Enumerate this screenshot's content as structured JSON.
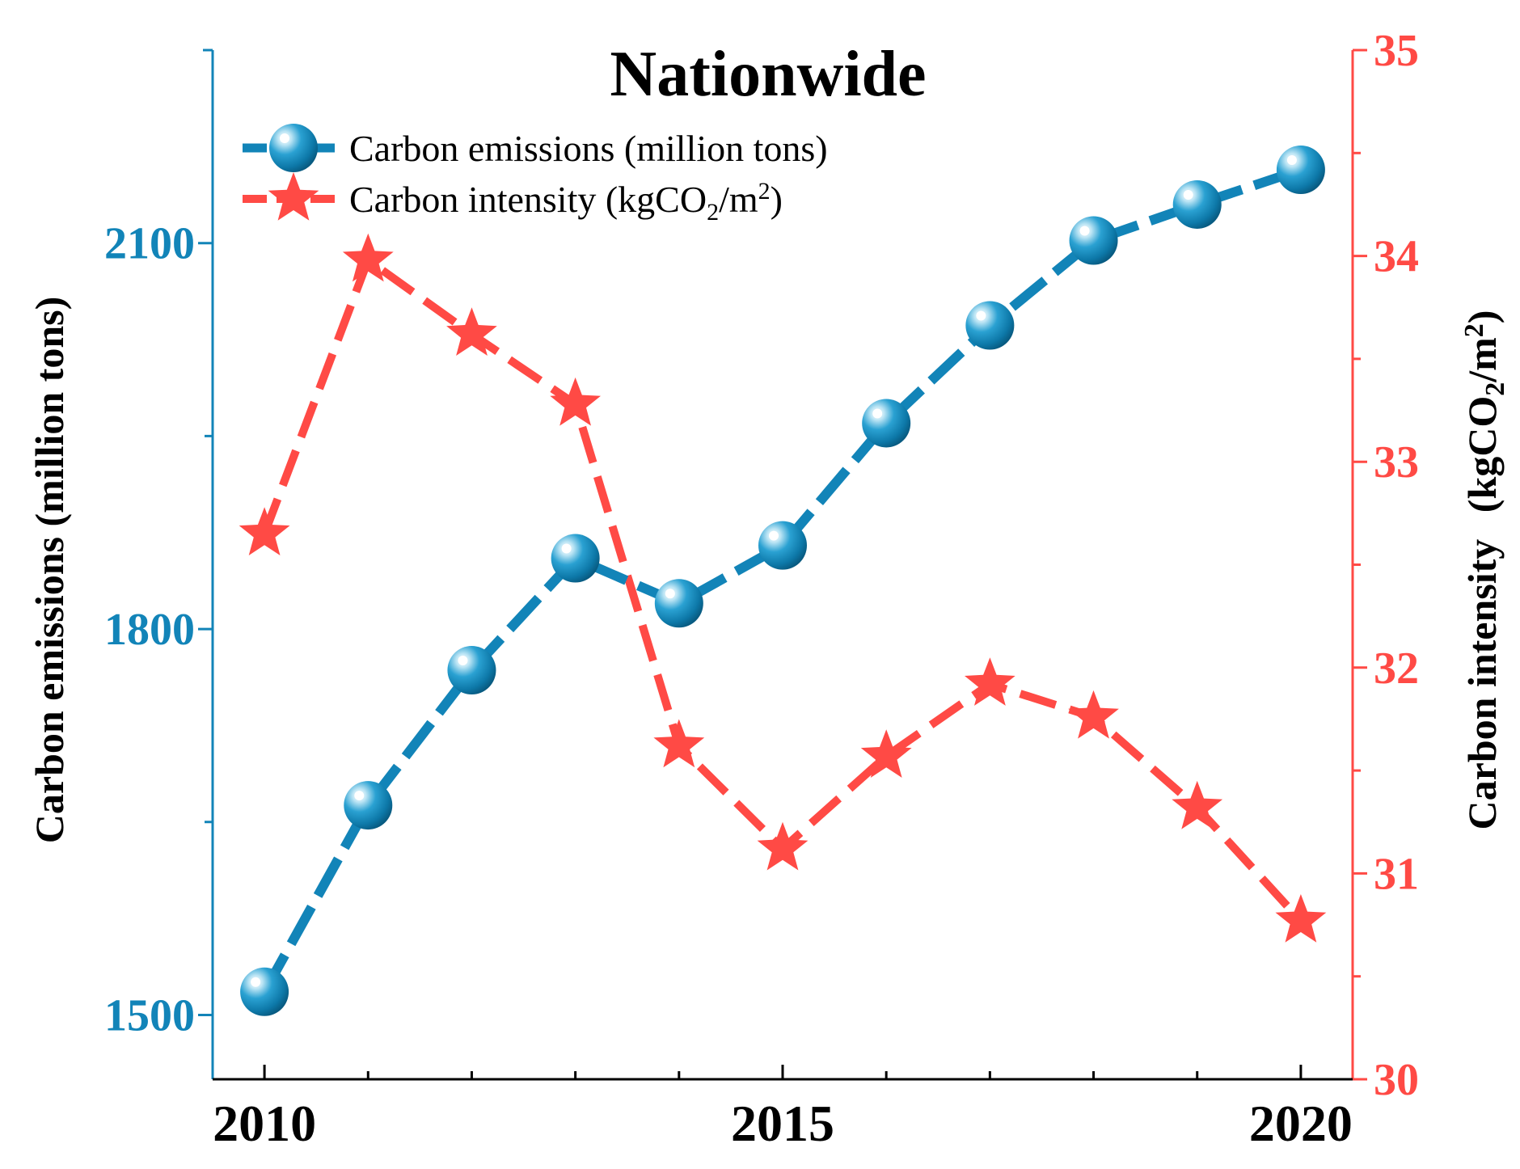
{
  "chart_data": {
    "type": "line",
    "title": "Nationwide",
    "x": [
      2010,
      2011,
      2012,
      2013,
      2014,
      2015,
      2016,
      2017,
      2018,
      2019,
      2020
    ],
    "x_ticks": [
      "2010",
      "2015",
      "2020"
    ],
    "xlim": [
      2009.5,
      2020.5
    ],
    "series": [
      {
        "name": "Carbon emissions (million tons)",
        "axis": "left",
        "color": "#1284b8",
        "marker": "sphere",
        "values": [
          1518,
          1663,
          1768,
          1855,
          1820,
          1865,
          1960,
          2036,
          2102,
          2130,
          2157
        ]
      },
      {
        "name": "Carbon intensity",
        "name_unit_parts": [
          "(kgCO",
          "2",
          "/m",
          "2",
          ")"
        ],
        "axis": "right",
        "color": "#ff4a45",
        "marker": "star",
        "values": [
          32.65,
          33.98,
          33.62,
          33.28,
          31.62,
          31.12,
          31.57,
          31.92,
          31.76,
          31.32,
          30.77
        ]
      }
    ],
    "y_left": {
      "label": "Carbon emissions (million tons)",
      "ticks": [
        1500,
        1800,
        2100
      ],
      "ylim": [
        1450,
        2250
      ],
      "color": "#1284b8"
    },
    "y_right": {
      "label": "Carbon intensity",
      "label_unit_parts": [
        "(kgCO",
        "2",
        "/m",
        "2",
        ")"
      ],
      "ticks": [
        30,
        31,
        32,
        33,
        34,
        35
      ],
      "ylim": [
        30,
        35
      ],
      "color": "#ff4a45"
    },
    "grid": false,
    "legend_position": "top-left"
  }
}
